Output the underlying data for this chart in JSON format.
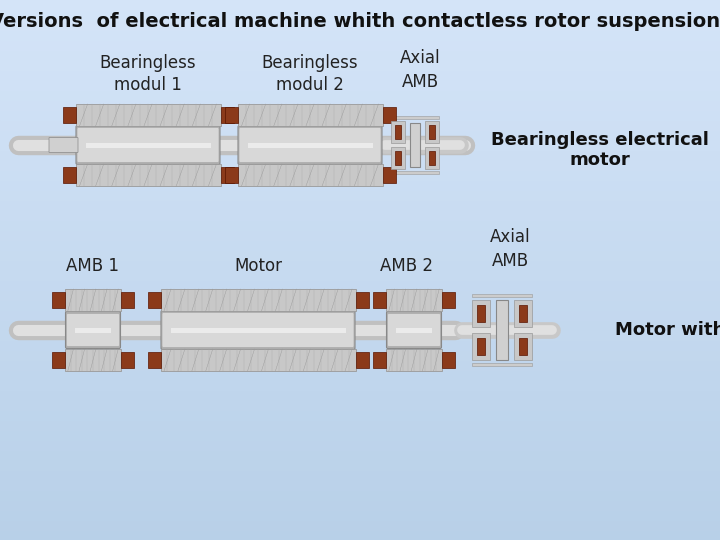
{
  "title": "Versions  of electrical machine whith contactless rotor suspension",
  "bg_color": "#b8d0e8",
  "stator_color": "#c8c8c8",
  "stator_edge": "#999999",
  "winding_color": "#8B3A1A",
  "shaft_color": "#d0d0d0",
  "label_color": "#222222",
  "label_bold_color": "#111111",
  "motor_with_amb_label": "Motor with AMB",
  "bearingless_label": "Bearingless electrical\nmotor",
  "top_labels": [
    "AMB 1",
    "Motor",
    "AMB 2",
    "Axial\nAMB"
  ],
  "bottom_labels": [
    "Bearingless\nmodul 1",
    "Bearingless\nmodul 2",
    "Axial\nAMB"
  ]
}
